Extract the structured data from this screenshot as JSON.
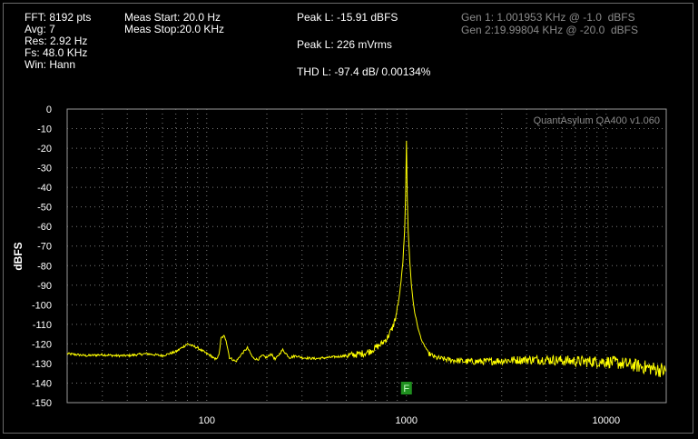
{
  "header": {
    "fft": "FFT: 8192 pts",
    "avg": "Avg: 7",
    "res": "Res: 2.92 Hz",
    "fs": "Fs: 48.0 KHz",
    "win": "Win: Hann",
    "meas_start": "Meas Start: 20.0 Hz",
    "meas_stop": "Meas Stop:20.0 KHz",
    "peak_l_dbfs": "Peak L: -15.91 dBFS",
    "peak_l_vrms": "Peak L: 226 mVrms",
    "thd_l": "THD L: -97.4 dB/ 0.00134%",
    "gen1": "Gen 1: 1.001953 KHz @ -1.0  dBFS",
    "gen2": "Gen 2:19.99804 KHz @ -20.0  dBFS"
  },
  "colors": {
    "trace": "#ffff00",
    "grid": "#7a7a7a",
    "marker": "#1f8f1f",
    "background": "#000000"
  },
  "chart_data": {
    "type": "line",
    "watermark": "QuantAsylum QA400 v1.060",
    "ylabel": "dBFS",
    "xlabel": "",
    "x_scale": "log",
    "xlim": [
      20,
      20000
    ],
    "ylim": [
      -150,
      0
    ],
    "grid": true,
    "yticks": [
      0,
      -10,
      -20,
      -30,
      -40,
      -50,
      -60,
      -70,
      -80,
      -90,
      -100,
      -110,
      -120,
      -130,
      -140,
      -150
    ],
    "xtick_labels": [
      {
        "value": 100,
        "label": "100"
      },
      {
        "value": 1000,
        "label": "1000"
      },
      {
        "value": 10000,
        "label": "10000"
      }
    ],
    "marker": {
      "x": 1000,
      "label": "F"
    },
    "series": [
      {
        "x": [
          20,
          25,
          30,
          35,
          40,
          50,
          60,
          70,
          80,
          90,
          100,
          105,
          110,
          115,
          118,
          122,
          125,
          130,
          135,
          140,
          150,
          160,
          170,
          180,
          190,
          200,
          210,
          220,
          240,
          260,
          280,
          300,
          350,
          400,
          450,
          500,
          550,
          600,
          650,
          700,
          750,
          800,
          850,
          880,
          900,
          920,
          940,
          960,
          980,
          990,
          1000,
          1010,
          1020,
          1040,
          1060,
          1080,
          1100,
          1150,
          1200,
          1300,
          1400,
          1600,
          1800,
          2000,
          2500,
          3000,
          4000,
          5000,
          6000,
          8000,
          10000,
          12000,
          14000,
          16000,
          18000,
          20000
        ],
        "y": [
          -125,
          -126,
          -125.5,
          -126,
          -126,
          -125,
          -126,
          -124,
          -120,
          -122,
          -125,
          -126,
          -128,
          -126,
          -117,
          -116,
          -118,
          -127,
          -128,
          -129,
          -125,
          -122,
          -127,
          -128,
          -126,
          -127,
          -125,
          -128,
          -123,
          -127,
          -126,
          -127,
          -127.5,
          -127,
          -126.5,
          -126,
          -125.5,
          -125,
          -124,
          -122,
          -120,
          -117,
          -112,
          -107,
          -102,
          -96,
          -88,
          -78,
          -62,
          -45,
          -16,
          -45,
          -62,
          -78,
          -90,
          -98,
          -104,
          -113,
          -119,
          -125,
          -127,
          -128,
          -128.5,
          -129,
          -129,
          -128.5,
          -128,
          -128,
          -128.5,
          -129,
          -129,
          -130,
          -131,
          -132,
          -133,
          -134
        ]
      }
    ]
  }
}
